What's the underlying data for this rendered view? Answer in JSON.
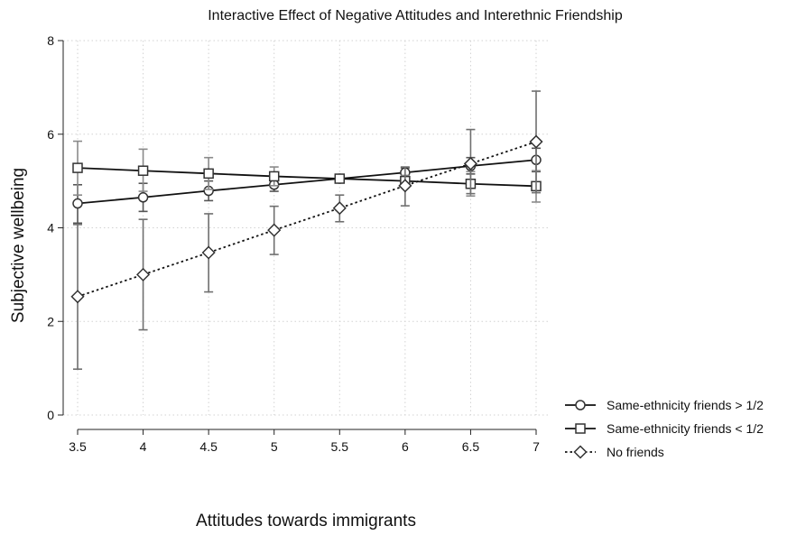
{
  "chart_data": {
    "type": "line",
    "title": "Interactive Effect of Negative Attitudes and Interethnic Friendship",
    "xlabel": "Attitudes towards immigrants",
    "ylabel": "Subjective wellbeing",
    "x": [
      3.5,
      4,
      4.5,
      5,
      5.5,
      6,
      6.5,
      7
    ],
    "xlim": [
      3.5,
      7
    ],
    "ylim": [
      0,
      8
    ],
    "xticks": [
      "3.5",
      "4",
      "4.5",
      "5",
      "5.5",
      "6",
      "6.5",
      "7"
    ],
    "yticks": [
      "0",
      "2",
      "4",
      "6",
      "8"
    ],
    "grid": true,
    "legend_position": "right",
    "series": [
      {
        "name": "Same-ethnicity friends > 1/2",
        "marker": "circle",
        "line": "solid",
        "color": "#222222",
        "values": [
          4.52,
          4.65,
          4.79,
          4.92,
          5.05,
          5.18,
          5.32,
          5.45
        ],
        "ci_low": [
          4.1,
          4.35,
          4.58,
          4.78,
          5.0,
          5.08,
          5.15,
          5.2
        ],
        "ci_high": [
          4.92,
          4.95,
          5.0,
          5.06,
          5.1,
          5.28,
          5.5,
          5.7
        ]
      },
      {
        "name": "Same-ethnicity friends < 1/2",
        "marker": "square",
        "line": "solid",
        "color": "#222222",
        "values": [
          5.28,
          5.22,
          5.16,
          5.1,
          5.05,
          5.0,
          4.94,
          4.89
        ],
        "ci_low": [
          4.7,
          4.78,
          4.82,
          4.9,
          4.98,
          4.88,
          4.68,
          4.55
        ],
        "ci_high": [
          5.85,
          5.68,
          5.5,
          5.3,
          5.12,
          5.12,
          5.2,
          5.22
        ]
      },
      {
        "name": "No friends",
        "marker": "diamond",
        "line": "dotted",
        "color": "#222222",
        "values": [
          2.53,
          3.0,
          3.47,
          3.95,
          4.42,
          4.9,
          5.37,
          5.84
        ],
        "ci_low": [
          0.98,
          1.82,
          2.63,
          3.43,
          4.13,
          4.47,
          4.73,
          4.75
        ],
        "ci_high": [
          4.07,
          4.18,
          4.3,
          4.46,
          4.7,
          5.3,
          6.1,
          6.92
        ]
      }
    ]
  }
}
